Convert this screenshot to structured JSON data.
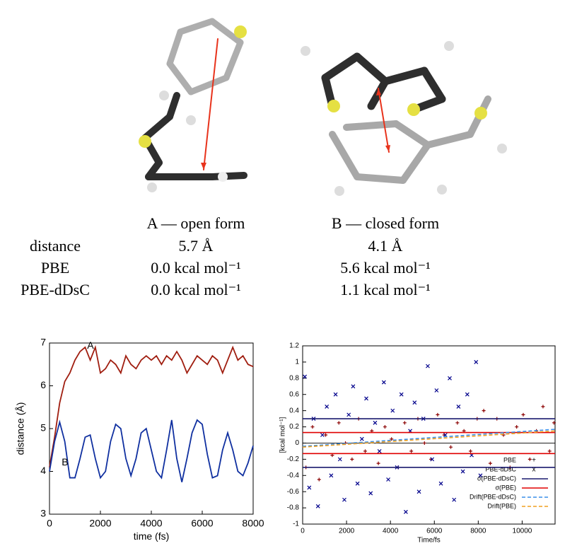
{
  "table": {
    "header": [
      "A — open form",
      "B — closed form"
    ],
    "rows": [
      [
        "distance",
        "5.7 Å",
        "4.1 Å"
      ],
      [
        "PBE",
        "0.0 kcal mol⁻¹",
        "5.6 kcal mol⁻¹"
      ],
      [
        "PBE-dDsC",
        "0.0 kcal mol⁻¹",
        "1.1 kcal mol⁻¹"
      ]
    ]
  },
  "chart_data": [
    {
      "type": "line",
      "xlabel": "time (fs)",
      "ylabel": "distance (Å)",
      "x": [
        0,
        200,
        400,
        600,
        800,
        1000,
        1200,
        1400,
        1600,
        1800,
        2000,
        2200,
        2400,
        2600,
        2800,
        3000,
        3200,
        3400,
        3600,
        3800,
        4000,
        4200,
        4400,
        4600,
        4800,
        5000,
        5200,
        5400,
        5600,
        5800,
        6000,
        6200,
        6400,
        6600,
        6800,
        7000,
        7200,
        7400,
        7600,
        7800,
        8000
      ],
      "series": [
        {
          "name": "A",
          "color": "#a01e10",
          "values": [
            4.1,
            4.8,
            5.6,
            6.1,
            6.3,
            6.6,
            6.8,
            6.9,
            6.6,
            6.9,
            6.3,
            6.4,
            6.6,
            6.5,
            6.3,
            6.7,
            6.5,
            6.4,
            6.6,
            6.7,
            6.6,
            6.7,
            6.5,
            6.7,
            6.6,
            6.8,
            6.6,
            6.3,
            6.5,
            6.7,
            6.6,
            6.5,
            6.7,
            6.6,
            6.3,
            6.6,
            6.9,
            6.6,
            6.7,
            6.5,
            6.45
          ]
        },
        {
          "name": "B",
          "color": "#1030a0",
          "values": [
            4.0,
            4.7,
            5.15,
            4.7,
            3.85,
            3.85,
            4.3,
            4.8,
            4.85,
            4.3,
            3.85,
            4.0,
            4.7,
            5.1,
            5.0,
            4.3,
            3.9,
            4.3,
            4.9,
            5.0,
            4.5,
            4.0,
            3.85,
            4.5,
            5.2,
            4.3,
            3.75,
            4.3,
            4.9,
            5.2,
            5.1,
            4.4,
            3.85,
            3.9,
            4.5,
            4.9,
            4.5,
            4.0,
            3.9,
            4.2,
            4.6
          ]
        }
      ],
      "xlim": [
        0,
        8000
      ],
      "xticks": [
        0,
        2000,
        4000,
        6000,
        8000
      ],
      "ylim": [
        3,
        7
      ],
      "yticks": [
        3,
        4,
        5,
        6,
        7
      ]
    },
    {
      "type": "scatter",
      "xlabel": "Time/fs",
      "ylabel": "[kcal mol⁻¹]",
      "legend": "lower right",
      "series": [
        {
          "name": "PBE",
          "color": "#8b0000",
          "style": "markers",
          "marker": "+",
          "x": [
            150,
            450,
            750,
            1050,
            1350,
            1650,
            1950,
            2250,
            2550,
            2850,
            3150,
            3450,
            3750,
            4050,
            4350,
            4650,
            4950,
            5250,
            5550,
            5850,
            6150,
            6450,
            6750,
            7050,
            7350,
            7650,
            7950,
            8250,
            8550,
            8850,
            9150,
            9450,
            9750,
            10050,
            10350,
            10650,
            10950,
            11250,
            11450
          ],
          "values": [
            -0.3,
            0.2,
            -0.45,
            0.1,
            -0.15,
            0.25,
            0.0,
            -0.2,
            0.3,
            -0.1,
            0.15,
            -0.25,
            0.2,
            0.05,
            -0.3,
            0.25,
            -0.1,
            0.3,
            0.0,
            -0.2,
            0.35,
            0.1,
            -0.05,
            0.25,
            0.15,
            -0.1,
            0.3,
            0.4,
            -0.25,
            0.3,
            0.1,
            -0.3,
            0.2,
            0.35,
            -0.2,
            0.15,
            0.45,
            -0.1,
            0.25
          ]
        },
        {
          "name": "PBE-dDsC",
          "color": "#00008b",
          "style": "markers",
          "marker": "x",
          "x": [
            100,
            300,
            500,
            700,
            900,
            1100,
            1300,
            1500,
            1700,
            1900,
            2100,
            2300,
            2500,
            2700,
            2900,
            3100,
            3300,
            3500,
            3700,
            3900,
            4100,
            4300,
            4500,
            4700,
            4900,
            5100,
            5300,
            5500,
            5700,
            5900,
            6100,
            6300,
            6500,
            6700,
            6900,
            7100,
            7300,
            7500,
            7700,
            7900,
            8100
          ],
          "values": [
            0.82,
            -0.55,
            0.3,
            -0.78,
            0.1,
            0.45,
            -0.4,
            0.6,
            -0.2,
            -0.7,
            0.35,
            0.7,
            -0.5,
            0.05,
            0.55,
            -0.62,
            0.25,
            -0.1,
            0.75,
            -0.45,
            0.4,
            -0.3,
            0.6,
            -0.85,
            0.15,
            0.5,
            -0.6,
            0.3,
            0.95,
            -0.2,
            0.65,
            -0.5,
            0.1,
            0.8,
            -0.7,
            0.45,
            -0.35,
            0.6,
            -0.15,
            1.0,
            -0.4
          ]
        },
        {
          "name": "σ(PBE-dDsC)",
          "color": "#1a1a6e",
          "style": "solid",
          "x": [
            0,
            11500,
            null,
            0,
            11500
          ],
          "values": [
            0.3,
            0.3,
            null,
            -0.3,
            -0.3
          ]
        },
        {
          "name": "σ(PBE)",
          "color": "#e00000",
          "style": "solid",
          "x": [
            0,
            11500,
            null,
            0,
            11500
          ],
          "values": [
            0.13,
            0.13,
            null,
            -0.13,
            -0.13
          ]
        },
        {
          "name": "Drift(PBE-dDsC)",
          "color": "#3a8fe8",
          "style": "dashed",
          "x": [
            0,
            11500
          ],
          "values": [
            -0.04,
            0.17
          ]
        },
        {
          "name": "Drift(PBE)",
          "color": "#f0a020",
          "style": "dashed",
          "x": [
            0,
            11500
          ],
          "values": [
            -0.05,
            0.15
          ]
        }
      ],
      "xlim": [
        0,
        11500
      ],
      "xticks": [
        0,
        2000,
        4000,
        6000,
        8000,
        10000
      ],
      "ylim": [
        -1,
        1.2
      ],
      "yticks": [
        -1,
        -0.8,
        -0.6,
        -0.4,
        -0.2,
        0,
        0.2,
        0.4,
        0.6,
        0.8,
        1,
        1.2
      ]
    }
  ]
}
